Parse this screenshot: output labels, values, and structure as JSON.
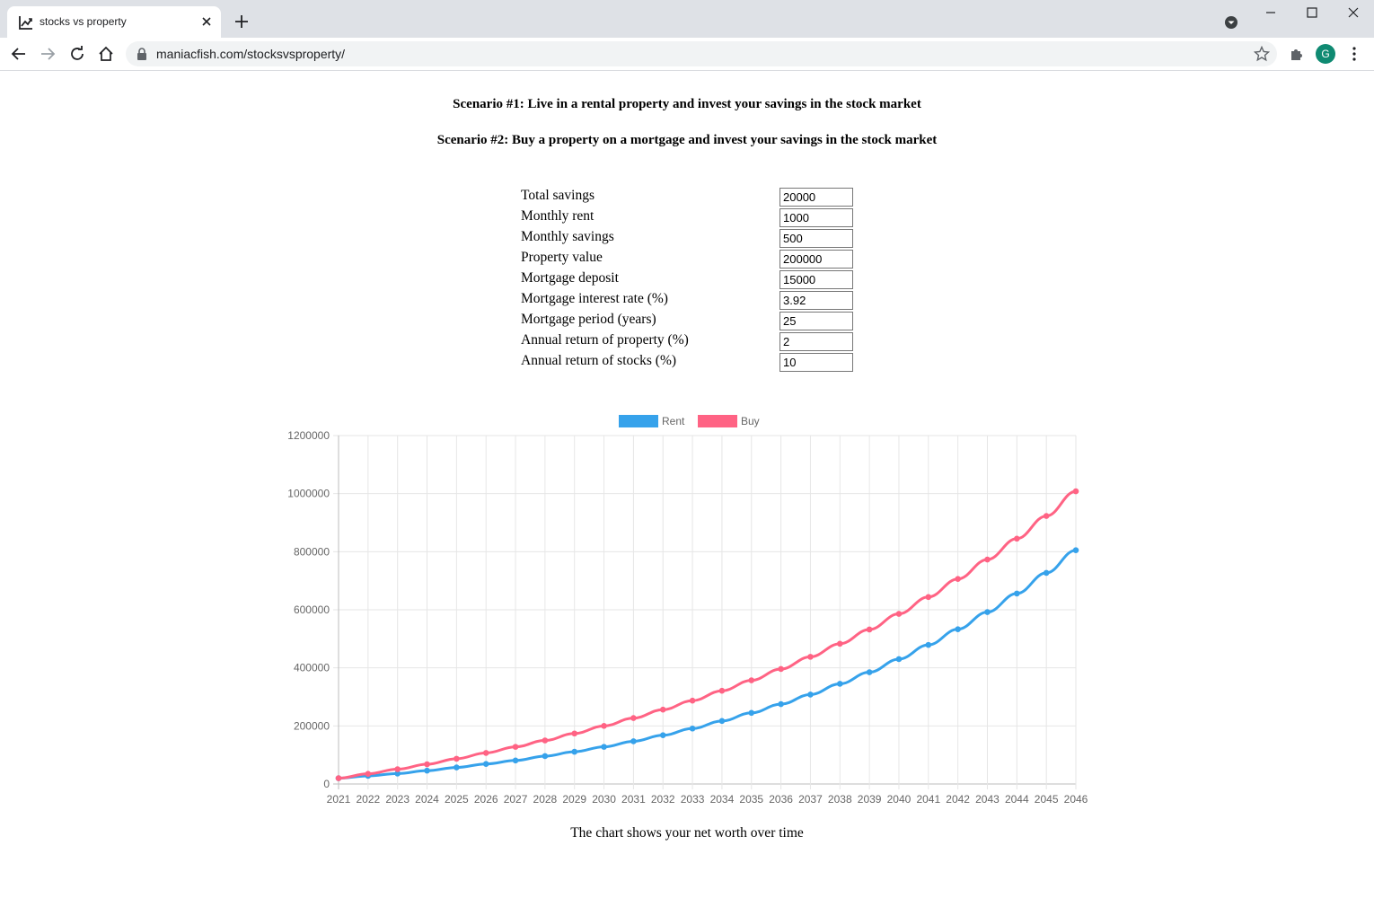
{
  "browser": {
    "tab_title": "stocks vs property",
    "url": "maniacfish.com/stocksvsproperty/",
    "profile_initial": "G"
  },
  "page": {
    "heading1": "Scenario #1: Live in a rental property and invest your savings in the stock market",
    "heading2": "Scenario #2: Buy a property on a mortgage and invest your savings in the stock market",
    "form": [
      {
        "label": "Total savings",
        "value": "20000"
      },
      {
        "label": "Monthly rent",
        "value": "1000"
      },
      {
        "label": "Monthly savings",
        "value": "500"
      },
      {
        "label": "Property value",
        "value": "200000"
      },
      {
        "label": "Mortgage deposit",
        "value": "15000"
      },
      {
        "label": "Mortgage interest rate (%)",
        "value": "3.92"
      },
      {
        "label": "Mortgage period (years)",
        "value": "25"
      },
      {
        "label": "Annual return of property (%)",
        "value": "2"
      },
      {
        "label": "Annual return of stocks (%)",
        "value": "10"
      }
    ],
    "caption": "The chart shows your net worth over time"
  },
  "colors": {
    "rent": "#36a2eb",
    "buy": "#ff6384"
  },
  "chart_data": {
    "type": "line",
    "title": "",
    "xlabel": "",
    "ylabel": "",
    "x": [
      "2021",
      "2022",
      "2023",
      "2024",
      "2025",
      "2026",
      "2027",
      "2028",
      "2029",
      "2030",
      "2031",
      "2032",
      "2033",
      "2034",
      "2035",
      "2036",
      "2037",
      "2038",
      "2039",
      "2040",
      "2041",
      "2042",
      "2043",
      "2044",
      "2045",
      "2046"
    ],
    "yticks": [
      "0",
      "200000",
      "400000",
      "600000",
      "800000",
      "1000000",
      "1200000"
    ],
    "ylim": [
      0,
      1200000
    ],
    "grid": true,
    "legend": "top",
    "series": [
      {
        "name": "Rent",
        "color": "#36a2eb",
        "values": [
          20000,
          28000,
          36000,
          46000,
          57000,
          69000,
          81000,
          96000,
          111000,
          128000,
          147000,
          168000,
          191000,
          217000,
          245000,
          275000,
          308000,
          345000,
          385000,
          430000,
          479000,
          533000,
          592000,
          656000,
          727000,
          805000
        ]
      },
      {
        "name": "Buy",
        "color": "#ff6384",
        "values": [
          20000,
          35000,
          51000,
          68000,
          87000,
          107000,
          128000,
          150000,
          174000,
          200000,
          227000,
          256000,
          287000,
          321000,
          357000,
          396000,
          438000,
          483000,
          532000,
          586000,
          644000,
          706000,
          773000,
          845000,
          923000,
          1008000
        ]
      }
    ]
  }
}
